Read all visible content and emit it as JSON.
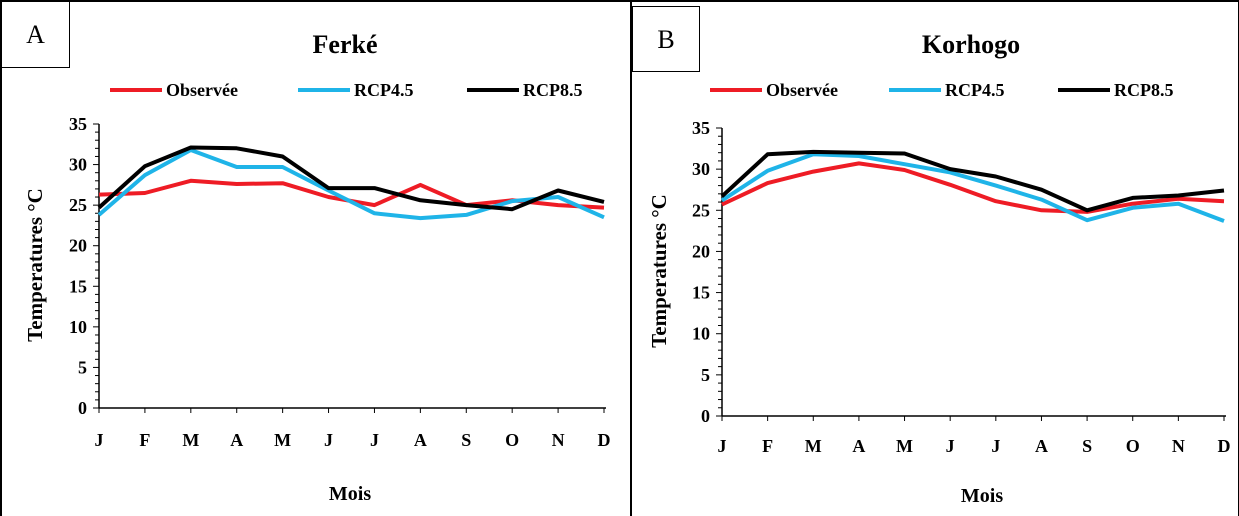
{
  "panels": [
    {
      "letter": "A",
      "title": "Ferké"
    },
    {
      "letter": "B",
      "title": "Korhogo"
    }
  ],
  "colors": {
    "observee": "#ee1c25",
    "rcp45": "#1fb4e8",
    "rcp85": "#000000"
  },
  "chart_data": [
    {
      "type": "line",
      "title": "Ferké",
      "xlabel": "Mois",
      "ylabel": "Temperatures °C",
      "categories": [
        "J",
        "F",
        "M",
        "A",
        "M",
        "J",
        "J",
        "A",
        "S",
        "O",
        "N",
        "D"
      ],
      "yticks": [
        "0",
        "5",
        "10",
        "15",
        "20",
        "25",
        "30",
        "35"
      ],
      "ylim": [
        0,
        35
      ],
      "legend_position": "top",
      "grid": false,
      "series": [
        {
          "name": "Observée",
          "color": "#ee1c25",
          "values": [
            26.3,
            26.5,
            28.0,
            27.6,
            27.7,
            26.0,
            25.0,
            27.5,
            25.0,
            25.6,
            25.0,
            24.7
          ]
        },
        {
          "name": "RCP4.5",
          "color": "#1fb4e8",
          "values": [
            23.8,
            28.7,
            31.8,
            29.7,
            29.7,
            26.8,
            24.0,
            23.4,
            23.8,
            25.5,
            26.0,
            23.5
          ]
        },
        {
          "name": "RCP8.5",
          "color": "#000000",
          "values": [
            24.7,
            29.8,
            32.1,
            32.0,
            31.0,
            27.1,
            27.1,
            25.6,
            25.0,
            24.5,
            26.8,
            25.4
          ]
        }
      ]
    },
    {
      "type": "line",
      "title": "Korhogo",
      "xlabel": "Mois",
      "ylabel": "Temperatures °C",
      "categories": [
        "J",
        "F",
        "M",
        "A",
        "M",
        "J",
        "J",
        "A",
        "S",
        "O",
        "N",
        "D"
      ],
      "yticks": [
        "0",
        "5",
        "10",
        "15",
        "20",
        "25",
        "30",
        "35"
      ],
      "ylim": [
        0,
        35
      ],
      "legend_position": "top",
      "grid": false,
      "series": [
        {
          "name": "Observée",
          "color": "#ee1c25",
          "values": [
            25.7,
            28.3,
            29.7,
            30.7,
            29.9,
            28.1,
            26.1,
            25.0,
            24.8,
            25.8,
            26.4,
            26.1
          ]
        },
        {
          "name": "RCP4.5",
          "color": "#1fb4e8",
          "values": [
            26.2,
            29.8,
            31.8,
            31.6,
            30.6,
            29.6,
            28.0,
            26.3,
            23.8,
            25.3,
            25.8,
            23.7
          ]
        },
        {
          "name": "RCP8.5",
          "color": "#000000",
          "values": [
            26.7,
            31.8,
            32.1,
            32.0,
            31.9,
            30.0,
            29.1,
            27.5,
            25.0,
            26.5,
            26.8,
            27.4
          ]
        }
      ]
    }
  ]
}
